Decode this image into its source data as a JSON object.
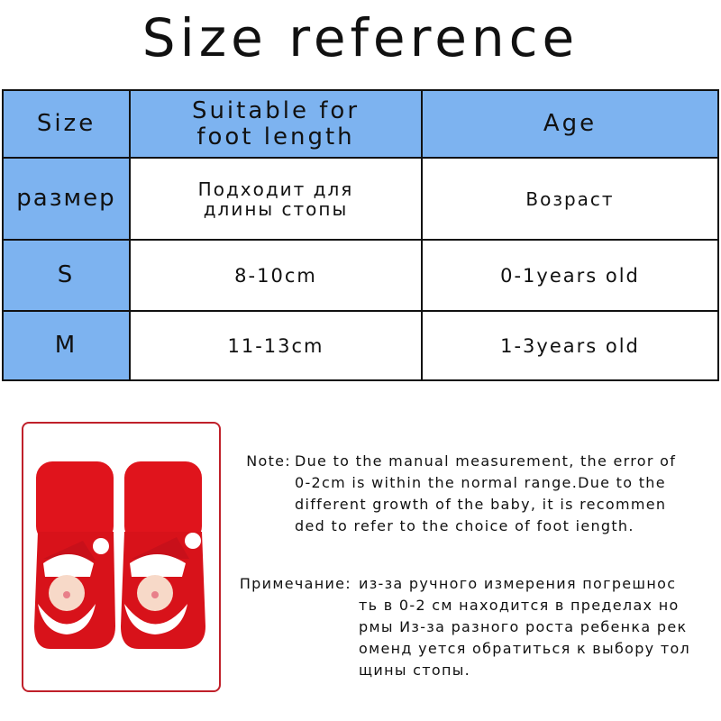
{
  "title": "Size reference",
  "table": {
    "header": [
      "Size",
      "Suitable for foot length",
      "Age"
    ],
    "header_lines": {
      "col1_line1": "Suitable for",
      "col1_line2": "foot length"
    },
    "ru_header": {
      "size": "размер",
      "foot_line1": "Подходит для",
      "foot_line2": "длины стопы",
      "age": "Возраст"
    },
    "rows": [
      {
        "size": "S",
        "foot_length": "8-10cm",
        "age": "0-1years old"
      },
      {
        "size": "M",
        "foot_length": "11-13cm",
        "age": "1-3years old"
      }
    ]
  },
  "colors": {
    "header_blue": "#7db3f0",
    "frame_red": "#c0202a",
    "sock_red": "#e0141c"
  },
  "product_image": "red baby socks with Santa Claus faces",
  "note_en": {
    "label": "Note:",
    "lines": [
      "Due to the manual measurement, the error of",
      "0-2cm is within the normal range.Due to the",
      "different growth of the baby, it is recommen",
      "ded to refer to the choice of foot iength."
    ]
  },
  "note_ru": {
    "label": "Примечание:",
    "lines": [
      "из-за ручного измерения погрешнос",
      "ть в 0-2 см находится в пределах но",
      "рмы Из-за разного роста ребенка рек",
      "оменд уется обратиться к выбору тол",
      "щины стопы."
    ]
  }
}
